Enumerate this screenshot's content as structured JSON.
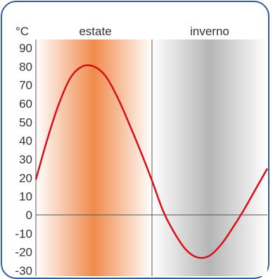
{
  "chart_data": {
    "type": "line",
    "unit_label": "°C",
    "ylim": [
      -30,
      90
    ],
    "y_ticks": [
      90,
      80,
      70,
      60,
      50,
      40,
      30,
      20,
      10,
      0,
      -10,
      -20,
      -30
    ],
    "y_tick_labels": [
      "90",
      "80",
      "70",
      "60",
      "50",
      "40",
      "30",
      "20",
      "10",
      "0",
      "-10",
      "-20",
      "-30"
    ],
    "regions": [
      {
        "label": "estate",
        "x_start": 0,
        "x_end": 0.5,
        "color": "#f08a4b"
      },
      {
        "label": "inverno",
        "x_start": 0.5,
        "x_end": 1.0,
        "color": "#b5b5b5"
      }
    ],
    "series": [
      {
        "color": "#d90f17",
        "x": [
          0.0,
          0.05,
          0.1,
          0.15,
          0.2,
          0.25,
          0.3,
          0.35,
          0.4,
          0.45,
          0.5,
          0.55,
          0.6,
          0.65,
          0.7,
          0.75,
          0.8,
          0.85,
          0.9,
          0.95,
          1.0
        ],
        "y": [
          19,
          41,
          60,
          74,
          80,
          80,
          75,
          64,
          50,
          35,
          19,
          2,
          -10,
          -19,
          -23,
          -22,
          -16,
          -7,
          3,
          14,
          25
        ]
      }
    ],
    "grid": false
  },
  "colors": {
    "frame": "#2f5f9e",
    "axis": "#555555"
  }
}
